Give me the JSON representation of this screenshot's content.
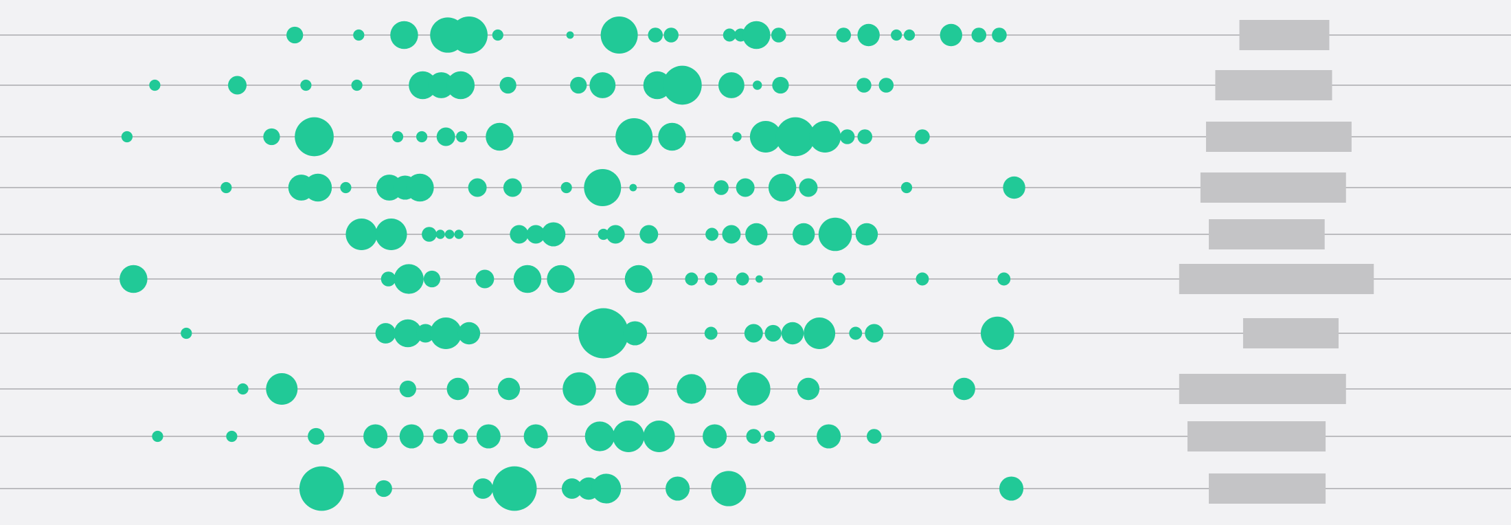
{
  "colors": {
    "background": "#f2f2f4",
    "line": "#a9a9ad",
    "bubble": "#21c997",
    "bar": "#c4c4c6"
  },
  "chart_data": {
    "type": "scatter",
    "title": "",
    "xlabel": "",
    "ylabel": "",
    "grid": false,
    "legend": "none",
    "xlim": [
      0,
      1630
    ],
    "rows": [
      {
        "points": [
          {
            "x": 318,
            "r": 9
          },
          {
            "x": 387,
            "r": 6
          },
          {
            "x": 436,
            "r": 15
          },
          {
            "x": 483,
            "r": 19
          },
          {
            "x": 506,
            "r": 20
          },
          {
            "x": 537,
            "r": 6
          },
          {
            "x": 615,
            "r": 4
          },
          {
            "x": 668,
            "r": 20
          },
          {
            "x": 707,
            "r": 8
          },
          {
            "x": 724,
            "r": 8
          },
          {
            "x": 787,
            "r": 7
          },
          {
            "x": 799,
            "r": 7
          },
          {
            "x": 816,
            "r": 15
          },
          {
            "x": 840,
            "r": 8
          },
          {
            "x": 910,
            "r": 8
          },
          {
            "x": 937,
            "r": 12
          },
          {
            "x": 967,
            "r": 6
          },
          {
            "x": 981,
            "r": 6
          },
          {
            "x": 1026,
            "r": 12
          },
          {
            "x": 1056,
            "r": 8
          },
          {
            "x": 1078,
            "r": 8
          }
        ],
        "bar": {
          "start": 1337,
          "end": 1434
        }
      },
      {
        "points": [
          {
            "x": 167,
            "r": 6
          },
          {
            "x": 256,
            "r": 10
          },
          {
            "x": 330,
            "r": 6
          },
          {
            "x": 385,
            "r": 6
          },
          {
            "x": 456,
            "r": 15
          },
          {
            "x": 476,
            "r": 14
          },
          {
            "x": 497,
            "r": 15
          },
          {
            "x": 548,
            "r": 9
          },
          {
            "x": 624,
            "r": 9
          },
          {
            "x": 650,
            "r": 14
          },
          {
            "x": 709,
            "r": 15
          },
          {
            "x": 736,
            "r": 21
          },
          {
            "x": 789,
            "r": 14
          },
          {
            "x": 817,
            "r": 5
          },
          {
            "x": 842,
            "r": 9
          },
          {
            "x": 932,
            "r": 8
          },
          {
            "x": 956,
            "r": 8
          }
        ],
        "bar": {
          "start": 1311,
          "end": 1437
        }
      },
      {
        "points": [
          {
            "x": 137,
            "r": 6
          },
          {
            "x": 293,
            "r": 9
          },
          {
            "x": 339,
            "r": 21
          },
          {
            "x": 429,
            "r": 6
          },
          {
            "x": 455,
            "r": 6
          },
          {
            "x": 481,
            "r": 10
          },
          {
            "x": 498,
            "r": 6
          },
          {
            "x": 539,
            "r": 15
          },
          {
            "x": 684,
            "r": 20
          },
          {
            "x": 725,
            "r": 15
          },
          {
            "x": 795,
            "r": 5
          },
          {
            "x": 826,
            "r": 17
          },
          {
            "x": 858,
            "r": 21
          },
          {
            "x": 890,
            "r": 17
          },
          {
            "x": 914,
            "r": 8
          },
          {
            "x": 933,
            "r": 8
          },
          {
            "x": 995,
            "r": 8
          }
        ],
        "bar": {
          "start": 1301,
          "end": 1458
        }
      },
      {
        "points": [
          {
            "x": 244,
            "r": 6
          },
          {
            "x": 325,
            "r": 14
          },
          {
            "x": 343,
            "r": 15
          },
          {
            "x": 373,
            "r": 6
          },
          {
            "x": 420,
            "r": 14
          },
          {
            "x": 437,
            "r": 13
          },
          {
            "x": 453,
            "r": 15
          },
          {
            "x": 515,
            "r": 10
          },
          {
            "x": 553,
            "r": 10
          },
          {
            "x": 611,
            "r": 6
          },
          {
            "x": 650,
            "r": 20
          },
          {
            "x": 683,
            "r": 4
          },
          {
            "x": 733,
            "r": 6
          },
          {
            "x": 778,
            "r": 8
          },
          {
            "x": 804,
            "r": 10
          },
          {
            "x": 844,
            "r": 15
          },
          {
            "x": 872,
            "r": 10
          },
          {
            "x": 978,
            "r": 6
          },
          {
            "x": 1094,
            "r": 12
          }
        ],
        "bar": {
          "start": 1295,
          "end": 1452
        }
      },
      {
        "points": [
          {
            "x": 390,
            "r": 17
          },
          {
            "x": 422,
            "r": 17
          },
          {
            "x": 463,
            "r": 8
          },
          {
            "x": 475,
            "r": 5
          },
          {
            "x": 485,
            "r": 5
          },
          {
            "x": 495,
            "r": 5
          },
          {
            "x": 560,
            "r": 10
          },
          {
            "x": 578,
            "r": 10
          },
          {
            "x": 597,
            "r": 13
          },
          {
            "x": 651,
            "r": 6
          },
          {
            "x": 664,
            "r": 10
          },
          {
            "x": 700,
            "r": 10
          },
          {
            "x": 768,
            "r": 7
          },
          {
            "x": 789,
            "r": 10
          },
          {
            "x": 816,
            "r": 12
          },
          {
            "x": 867,
            "r": 12
          },
          {
            "x": 901,
            "r": 18
          },
          {
            "x": 935,
            "r": 12
          }
        ],
        "bar": {
          "start": 1304,
          "end": 1429
        }
      },
      {
        "points": [
          {
            "x": 144,
            "r": 15
          },
          {
            "x": 419,
            "r": 8
          },
          {
            "x": 441,
            "r": 16
          },
          {
            "x": 466,
            "r": 9
          },
          {
            "x": 523,
            "r": 10
          },
          {
            "x": 569,
            "r": 15
          },
          {
            "x": 605,
            "r": 15
          },
          {
            "x": 689,
            "r": 15
          },
          {
            "x": 746,
            "r": 7
          },
          {
            "x": 767,
            "r": 7
          },
          {
            "x": 801,
            "r": 7
          },
          {
            "x": 819,
            "r": 4
          },
          {
            "x": 905,
            "r": 7
          },
          {
            "x": 995,
            "r": 7
          },
          {
            "x": 1083,
            "r": 7
          }
        ],
        "bar": {
          "start": 1272,
          "end": 1482
        }
      },
      {
        "points": [
          {
            "x": 201,
            "r": 6
          },
          {
            "x": 416,
            "r": 11
          },
          {
            "x": 440,
            "r": 15
          },
          {
            "x": 459,
            "r": 10
          },
          {
            "x": 481,
            "r": 17
          },
          {
            "x": 506,
            "r": 12
          },
          {
            "x": 651,
            "r": 27
          },
          {
            "x": 685,
            "r": 13
          },
          {
            "x": 767,
            "r": 7
          },
          {
            "x": 813,
            "r": 10
          },
          {
            "x": 834,
            "r": 9
          },
          {
            "x": 855,
            "r": 12
          },
          {
            "x": 884,
            "r": 17
          },
          {
            "x": 923,
            "r": 7
          },
          {
            "x": 943,
            "r": 10
          },
          {
            "x": 1076,
            "r": 18
          }
        ],
        "bar": {
          "start": 1341,
          "end": 1444
        }
      },
      {
        "points": [
          {
            "x": 262,
            "r": 6
          },
          {
            "x": 304,
            "r": 17
          },
          {
            "x": 440,
            "r": 9
          },
          {
            "x": 494,
            "r": 12
          },
          {
            "x": 549,
            "r": 12
          },
          {
            "x": 625,
            "r": 18
          },
          {
            "x": 682,
            "r": 18
          },
          {
            "x": 746,
            "r": 16
          },
          {
            "x": 813,
            "r": 18
          },
          {
            "x": 872,
            "r": 12
          },
          {
            "x": 1040,
            "r": 12
          }
        ],
        "bar": {
          "start": 1272,
          "end": 1452
        }
      },
      {
        "points": [
          {
            "x": 170,
            "r": 6
          },
          {
            "x": 250,
            "r": 6
          },
          {
            "x": 341,
            "r": 9
          },
          {
            "x": 405,
            "r": 13
          },
          {
            "x": 444,
            "r": 13
          },
          {
            "x": 475,
            "r": 8
          },
          {
            "x": 497,
            "r": 8
          },
          {
            "x": 527,
            "r": 13
          },
          {
            "x": 578,
            "r": 13
          },
          {
            "x": 647,
            "r": 16
          },
          {
            "x": 678,
            "r": 17
          },
          {
            "x": 711,
            "r": 17
          },
          {
            "x": 771,
            "r": 13
          },
          {
            "x": 813,
            "r": 8
          },
          {
            "x": 830,
            "r": 6
          },
          {
            "x": 894,
            "r": 13
          },
          {
            "x": 943,
            "r": 8
          }
        ],
        "bar": {
          "start": 1281,
          "end": 1430
        }
      },
      {
        "points": [
          {
            "x": 347,
            "r": 24
          },
          {
            "x": 414,
            "r": 9
          },
          {
            "x": 521,
            "r": 11
          },
          {
            "x": 555,
            "r": 24
          },
          {
            "x": 617,
            "r": 11
          },
          {
            "x": 635,
            "r": 12
          },
          {
            "x": 654,
            "r": 16
          },
          {
            "x": 731,
            "r": 13
          },
          {
            "x": 786,
            "r": 19
          },
          {
            "x": 1091,
            "r": 13
          }
        ],
        "bar": {
          "start": 1304,
          "end": 1430
        }
      }
    ]
  }
}
